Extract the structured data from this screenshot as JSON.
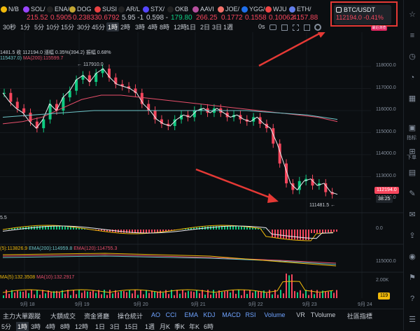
{
  "ticker": [
    {
      "sym": "N/B",
      "px": "",
      "color": "#f0b90b",
      "cls": "red"
    },
    {
      "sym": "SOL/",
      "px": "215.52",
      "color": "#9945ff",
      "cls": "red"
    },
    {
      "sym": "ENA/",
      "px": "0.5905",
      "color": "#222",
      "cls": "red"
    },
    {
      "sym": "DOG",
      "px": "0.23833",
      "color": "#c2a633",
      "cls": "red"
    },
    {
      "sym": "SUSI",
      "px": "0.6792",
      "color": "#e84142",
      "cls": "red"
    },
    {
      "sym": "AR/L",
      "px": "5.95 -1",
      "color": "#222",
      "cls": "wht"
    },
    {
      "sym": "STX/",
      "px": "0.598 -",
      "color": "#5546ff",
      "cls": "wht"
    },
    {
      "sym": "OKB",
      "px": "179.80",
      "color": "#222",
      "cls": "grn"
    },
    {
      "sym": "AAVI",
      "px": "266.25",
      "color": "#b6509e",
      "cls": "red"
    },
    {
      "sym": "JOE/",
      "px": "0.1772",
      "color": "#f2716a",
      "cls": "red"
    },
    {
      "sym": "YGG/",
      "px": "0.1558",
      "color": "#1f6feb",
      "cls": "red"
    },
    {
      "sym": "WJU",
      "px": "0.10062",
      "color": "#ef4444",
      "cls": "red"
    },
    {
      "sym": "ETH/",
      "px": "4157.88",
      "color": "#627eea",
      "cls": "red"
    }
  ],
  "highlight": {
    "symbol": "BTC/USDT",
    "price": "112194.0",
    "change": "-0.41%",
    "tag": "最近浏览"
  },
  "toolbar": [
    "30秒",
    "1分",
    "5分",
    "10分",
    "15分",
    "30分",
    "45分",
    "1時",
    "2時",
    "3時",
    "4時",
    "8時",
    "12時",
    "1日",
    "2日",
    "3日",
    "1週"
  ],
  "toolbar_active": "1時",
  "toolbar_icons": {
    "reset": "0s",
    "camera": "camera-icon",
    "grid": "grid-icon",
    "settings": "settings-icon",
    "fullscreen": "fullscreen-icon"
  },
  "legend": {
    "ohlc": "1481.5 收 112194.0 漲幅 0.35%(394.2) 振幅 0.68%",
    "ma1": "115437.0)",
    "ma200": "MA(200):115599.7"
  },
  "price_axis": [
    "118000.0",
    "117000.0",
    "116000.0",
    "115000.0",
    "114000.0",
    "113000.0",
    "112000.0"
  ],
  "high_label": "117910.0",
  "low_label": "111481.5",
  "current_price": "112194.0",
  "countdown": "38:25",
  "macd_label": "5.5",
  "macd_axis": "0.0",
  "ema_legend": {
    "a": "(5):113826.9",
    "b": "EMA(200):114959.8",
    "c": "EMA(120):114755.3"
  },
  "ema_axis": "115000.0",
  "vol_legend": {
    "a": "MA(5):132.3508",
    "b": "MA(10):132.2917"
  },
  "vol_axis": "2.00K",
  "vol_tag": "119",
  "dates": [
    "9月 18",
    "9月 19",
    "9月 20",
    "9月 21",
    "9月 22",
    "9月 23",
    "9月 24"
  ],
  "bottom1": [
    "主力大單跟蹤",
    "大額成交",
    "资金肾廳",
    "操仓統计",
    "AO",
    "CCI",
    "EMA",
    "KDJ",
    "MACD",
    "RSI",
    "Volume",
    "VR",
    "TVolume",
    "社區指標"
  ],
  "bottom2": [
    "5分",
    "1時",
    "3時",
    "4時",
    "8時",
    "12時",
    "1日",
    "3日",
    "15日",
    "1週",
    "月K",
    "季K",
    "年K",
    "6時"
  ],
  "bottom2_active": "1時",
  "right_panel": {
    "tag1": "指标",
    "tag2": "全部",
    "tag3": "下单"
  },
  "colors": {
    "up": "#0ecb81",
    "down": "#f6465d",
    "ma7": "#f0b90b",
    "ma25": "#e84f6b",
    "ma99": "#6ec6c9"
  }
}
